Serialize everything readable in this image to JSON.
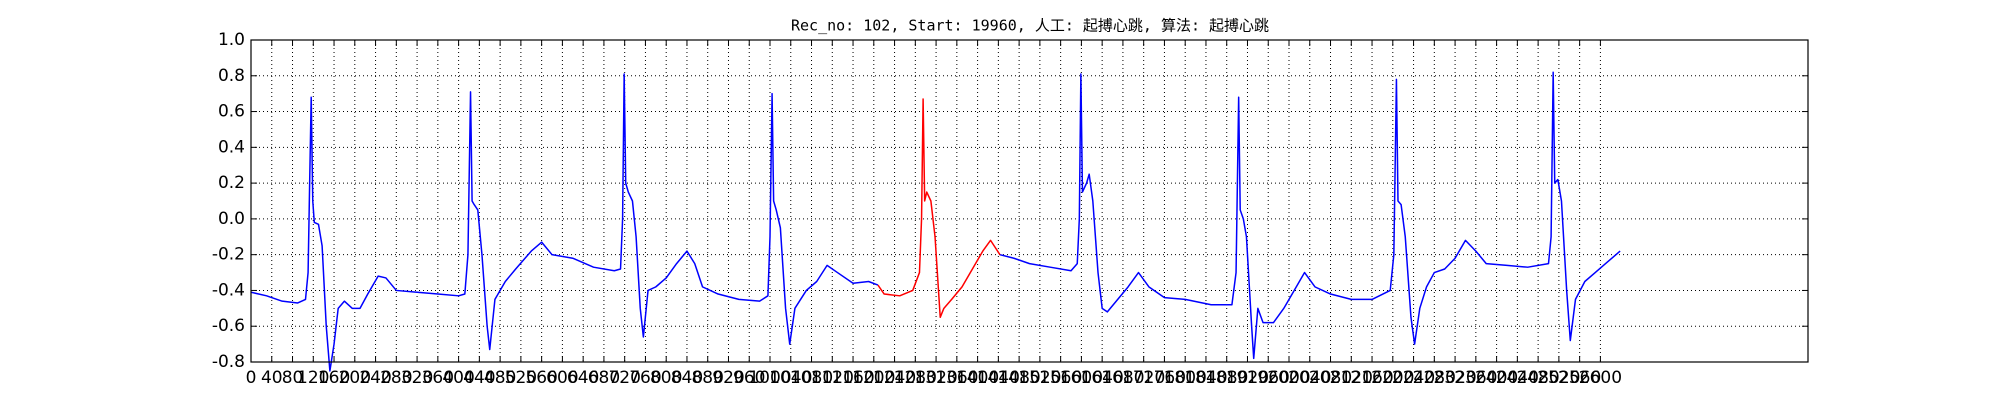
{
  "chart_data": {
    "type": "line",
    "title": "Rec_no: 102, Start: 19960, 人工: 起搏心跳, 算法: 起搏心跳",
    "xlim": [
      0,
      3000
    ],
    "xticks": [
      0,
      40,
      80,
      120,
      160,
      200,
      240,
      280,
      320,
      360,
      400,
      440,
      480,
      520,
      560,
      600,
      640,
      680,
      720,
      760,
      800,
      840,
      880,
      920,
      960,
      1000,
      1040,
      1080,
      1120,
      1160,
      1200,
      1240,
      1280,
      1320,
      1360,
      1400,
      1440,
      1480,
      1520,
      1560,
      1600,
      1640,
      1680,
      1720,
      1760,
      1800,
      1840,
      1880,
      1920,
      1960,
      2000,
      2040,
      2080,
      2120,
      2160,
      2200,
      2240,
      2280,
      2320,
      2360,
      2400,
      2440,
      2480,
      2520,
      2560,
      2600
    ],
    "ylim": [
      -0.8,
      1.0
    ],
    "yticks": [
      {
        "value": 1.0,
        "label": "1.0"
      },
      0.8,
      0.6,
      0.4,
      0.2,
      {
        "value": 0.0,
        "label": "0.0"
      },
      -0.2,
      -0.4,
      -0.6,
      -0.8
    ],
    "grid": true,
    "series": [
      {
        "color": "#0000ff",
        "x": [
          0,
          30,
          60,
          90,
          105,
          110,
          113,
          116,
          119,
          122,
          130,
          137,
          145,
          152,
          160,
          168,
          180,
          195,
          210,
          225,
          245,
          260,
          280,
          320,
          360,
          400,
          412,
          418,
          423,
          426,
          430,
          437,
          445,
          455,
          460,
          470,
          490,
          510,
          540,
          560,
          580,
          620,
          660,
          700,
          712,
          716,
          719,
          722,
          727,
          735,
          742,
          750,
          756,
          765,
          780,
          800,
          820,
          840,
          855,
          870,
          900,
          940,
          980,
          996,
          1000,
          1004,
          1007,
          1012,
          1020,
          1030,
          1038,
          1048,
          1070,
          1090,
          1110,
          1130,
          1160,
          1190,
          1208,
          1300,
          1443,
          1470,
          1500,
          1540,
          1580,
          1592,
          1596,
          1599,
          1602,
          1610,
          1615,
          1622,
          1632,
          1640,
          1650,
          1670,
          1690,
          1710,
          1730,
          1760,
          1800,
          1850,
          1890,
          1898,
          1903,
          1906,
          1912,
          1918,
          1928,
          1932,
          1940,
          1950,
          1970,
          1990,
          2010,
          2030,
          2050,
          2080,
          2120,
          2160,
          2195,
          2202,
          2207,
          2210,
          2216,
          2224,
          2235,
          2242,
          2252,
          2265,
          2280,
          2300,
          2320,
          2340,
          2360,
          2380,
          2420,
          2460,
          2500,
          2505,
          2509,
          2512,
          2518,
          2525,
          2535,
          2542,
          2552,
          2570,
          2590,
          2610,
          2638
        ],
        "values": [
          -0.41,
          -0.43,
          -0.46,
          -0.47,
          -0.45,
          -0.3,
          0.2,
          0.68,
          0.1,
          -0.02,
          -0.03,
          -0.15,
          -0.6,
          -0.85,
          -0.7,
          -0.5,
          -0.46,
          -0.5,
          -0.5,
          -0.42,
          -0.32,
          -0.33,
          -0.4,
          -0.41,
          -0.42,
          -0.43,
          -0.42,
          -0.2,
          0.71,
          0.1,
          0.08,
          0.05,
          -0.2,
          -0.6,
          -0.73,
          -0.45,
          -0.35,
          -0.28,
          -0.18,
          -0.13,
          -0.2,
          -0.22,
          -0.27,
          -0.29,
          -0.28,
          0.0,
          0.81,
          0.2,
          0.15,
          0.1,
          -0.1,
          -0.5,
          -0.66,
          -0.4,
          -0.38,
          -0.33,
          -0.25,
          -0.18,
          -0.25,
          -0.38,
          -0.42,
          -0.45,
          -0.46,
          -0.43,
          -0.1,
          0.7,
          0.1,
          0.05,
          -0.05,
          -0.5,
          -0.7,
          -0.5,
          -0.4,
          -0.35,
          -0.26,
          -0.3,
          -0.36,
          -0.35,
          -0.37,
          null,
          -0.2,
          -0.22,
          -0.25,
          -0.27,
          -0.29,
          -0.25,
          0.0,
          0.81,
          0.15,
          0.2,
          0.25,
          0.1,
          -0.3,
          -0.5,
          -0.52,
          -0.45,
          -0.38,
          -0.3,
          -0.38,
          -0.44,
          -0.45,
          -0.48,
          -0.48,
          -0.3,
          0.68,
          0.05,
          0.0,
          -0.1,
          -0.6,
          -0.78,
          -0.5,
          -0.58,
          -0.58,
          -0.5,
          -0.4,
          -0.3,
          -0.38,
          -0.42,
          -0.45,
          -0.45,
          -0.4,
          -0.2,
          0.78,
          0.1,
          0.08,
          -0.1,
          -0.55,
          -0.7,
          -0.5,
          -0.38,
          -0.3,
          -0.28,
          -0.22,
          -0.12,
          -0.18,
          -0.25,
          -0.26,
          -0.27,
          -0.25,
          -0.1,
          0.82,
          0.2,
          0.22,
          0.1,
          -0.4,
          -0.68,
          -0.45,
          -0.35,
          -0.3,
          -0.25,
          -0.18
        ]
      },
      {
        "color": "#ff0000",
        "x": [
          1208,
          1220,
          1250,
          1275,
          1288,
          1292,
          1295,
          1298,
          1302,
          1310,
          1318,
          1328,
          1335,
          1350,
          1370,
          1390,
          1410,
          1425,
          1443
        ],
        "values": [
          -0.37,
          -0.42,
          -0.43,
          -0.4,
          -0.3,
          0.0,
          0.67,
          0.1,
          0.15,
          0.1,
          -0.1,
          -0.55,
          -0.5,
          -0.45,
          -0.38,
          -0.28,
          -0.18,
          -0.12,
          -0.2
        ]
      }
    ]
  }
}
